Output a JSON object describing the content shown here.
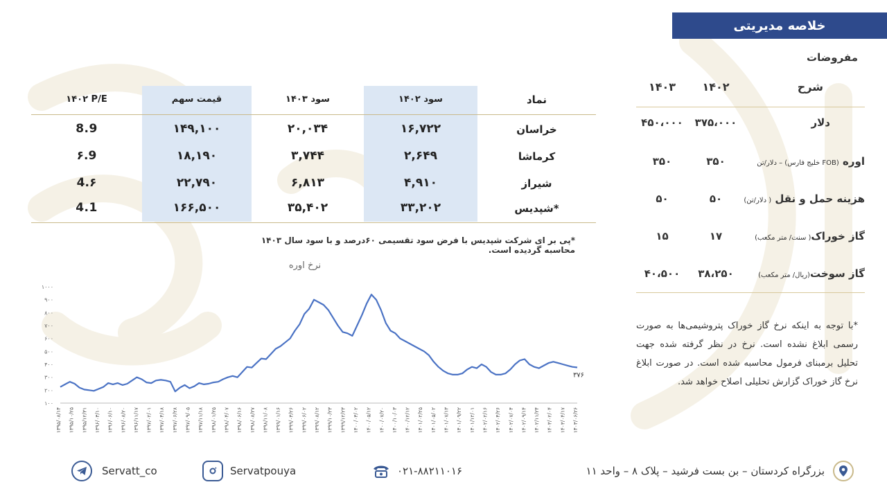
{
  "header": {
    "title": "خلاصه مدیریتی"
  },
  "assumptions": {
    "title": "مفروضات",
    "head": {
      "desc": "شرح",
      "y1402": "۱۴۰۲",
      "y1403": "۱۴۰۳"
    },
    "rows": [
      {
        "desc": "دلار",
        "unit": "",
        "y1402": "۳۷۵،۰۰۰",
        "y1403": "۴۵۰،۰۰۰"
      },
      {
        "desc": "اوره",
        "unit": "(FOB خلیج فارس) – دلار/تن",
        "y1402": "۳۵۰",
        "y1403": "۳۵۰"
      },
      {
        "desc": "هزینه حمل و نقل",
        "unit": "( دلار/تن)",
        "y1402": "۵۰",
        "y1403": "۵۰"
      },
      {
        "desc": "گاز خوراک",
        "unit": "( سنت/ متر مکعب)",
        "y1402": "۱۷",
        "y1403": "۱۵"
      },
      {
        "desc": "گاز سوخت",
        "unit": "(ریال/ متر مکعب)",
        "y1402": "۳۸،۲۵۰",
        "y1403": "۴۰،۵۰۰"
      }
    ],
    "note": "*با توجه به اینکه نرخ گاز خوراک پتروشیمی‌ها به صورت رسمی ابلاغ نشده است. نرخ در نظر گرفته شده جهت تحلیل برمبنای فرمول محاسبه شده است. در صورت ابلاغ نرخ گاز خوراک گزارش تحلیلی اصلاح خواهد شد."
  },
  "stocks": {
    "headers": {
      "symbol": "نماد",
      "profit1402": "سود ۱۴۰۲",
      "profit1403": "سود ۱۴۰۳",
      "price": "قیمت سهم",
      "pe": "۱۴۰۲ P/E"
    },
    "rows": [
      {
        "symbol": "خراسان",
        "profit1402": "۱۶,۷۲۲",
        "profit1403": "۲۰,۰۳۴",
        "price": "۱۴۹,۱۰۰",
        "pe": "8.9"
      },
      {
        "symbol": "کرماشا",
        "profit1402": "۲,۶۴۹",
        "profit1403": "۳,۷۴۴",
        "price": "۱۸,۱۹۰",
        "pe": "۶.9"
      },
      {
        "symbol": "شیراز",
        "profit1402": "۴,۹۱۰",
        "profit1403": "۶,۸۱۳",
        "price": "۲۲,۷۹۰",
        "pe": "4.۶"
      },
      {
        "symbol": "شپدیس*",
        "profit1402": "۳۳,۲۰۲",
        "profit1403": "۳۵,۴۰۲",
        "price": "۱۶۶,۵۰۰",
        "pe": "4.1"
      }
    ],
    "note": "*پی بر ای شرکت شپدیس با فرض سود تقسیمی ۶۰درصد و با سود سال ۱۴۰۳ محاسبه گردیده است."
  },
  "chart_data": {
    "type": "line",
    "title": "نرخ اوره",
    "ylim": [
      100,
      1000
    ],
    "yticks": [
      "۱۰۰",
      "۲۰۰",
      "۳۰۰",
      "۴۰۰",
      "۵۰۰",
      "۶۰۰",
      "۷۰۰",
      "۸۰۰",
      "۹۰۰",
      "۱۰۰۰"
    ],
    "xticks": [
      "۱۳۹۵/۰۸/۱۴",
      "۱۳۹۵/۱۰/۲۵",
      "۱۳۹۵/۱۲/۳۱",
      "۱۳۹۶/۰۳/۱۰",
      "۱۳۹۶/۰۶/۱۰",
      "۱۳۹۶/۰۸/۲۰",
      "۱۳۹۶/۱۱/۱۷",
      "۱۳۹۷/۰۲/۰۱",
      "۱۳۹۷/۰۴/۱۸",
      "۱۳۹۷/۰۶/۲۸",
      "۱۳۹۷/۰۹/۰۵",
      "۱۳۹۷/۱۱/۱۸",
      "۱۳۹۸/۰۱/۲۵",
      "۱۳۹۸/۰۴/۰۷",
      "۱۳۹۸/۰۶/۱۶",
      "۱۳۹۸/۰۸/۲۷",
      "۱۳۹۸/۱۱/۰۸",
      "۱۳۹۹/۰۱/۱۶",
      "۱۳۹۹/۰۳/۲۶",
      "۱۳۹۹/۰۶/۰۲",
      "۱۳۹۹/۰۸/۱۲",
      "۱۳۹۹/۱۰/۲۳",
      "۱۳۹۹/۱۲/۲۳",
      "۱۴۰۰/۰۳/۰۲",
      "۱۴۰۰/۰۵/۱۲",
      "۱۴۰۰/۰۷/۲۰",
      "۱۴۰۰/۱۰/۰۳",
      "۱۴۰۰/۱۲/۱۲",
      "۱۴۰۱/۰۲/۲۵",
      "۱۴۰۱/۰۵/۰۲",
      "۱۴۰۱/۰۷/۱۳",
      "۱۴۰۱/۰۹/۲۲",
      "۱۴۰۱/۱۲/۰۱",
      "۱۴۰۲/۰۲/۱۶",
      "۱۴۰۲/۰۴/۲۶",
      "۱۴۰۲/۰۷/۰۴",
      "۱۴۰۲/۰۹/۱۴",
      "۱۴۰۲/۱۱/۲۴",
      "۱۴۰۳/۰۲/۰۴",
      "۱۴۰۳/۰۴/۱۷",
      "۱۴۰۳/۰۶/۲۶"
    ],
    "values": [
      225,
      245,
      265,
      250,
      220,
      205,
      200,
      195,
      210,
      225,
      255,
      245,
      255,
      240,
      250,
      275,
      300,
      285,
      260,
      255,
      275,
      280,
      275,
      265,
      190,
      220,
      240,
      215,
      230,
      255,
      245,
      250,
      260,
      265,
      285,
      300,
      310,
      300,
      340,
      380,
      375,
      410,
      445,
      440,
      480,
      520,
      540,
      570,
      600,
      660,
      710,
      790,
      830,
      900,
      880,
      860,
      820,
      760,
      700,
      650,
      640,
      620,
      700,
      780,
      870,
      940,
      900,
      820,
      720,
      660,
      640,
      600,
      580,
      560,
      540,
      520,
      500,
      470,
      420,
      380,
      350,
      330,
      320,
      320,
      330,
      360,
      380,
      370,
      400,
      380,
      340,
      320,
      320,
      330,
      360,
      400,
      430,
      440,
      400,
      380,
      370,
      390,
      410,
      420,
      410,
      400,
      390,
      380,
      376
    ],
    "last_label": "۳۷۶"
  },
  "footer": {
    "telegram": "Servatt_co",
    "instagram": "Servatpouya",
    "phone": "۰۲۱-۸۸۲۱۱۰۱۶",
    "address": "بزرگراه کردستان – بن بست فرشید – پلاک ۸ – واحد ۱۱"
  },
  "colors": {
    "title_bg": "#2e4a8c",
    "band": "#dce7f4",
    "line": "#4a72c4",
    "rule": "#c9b98a"
  }
}
